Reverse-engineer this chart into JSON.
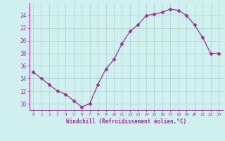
{
  "x": [
    0,
    1,
    2,
    3,
    4,
    5,
    6,
    7,
    8,
    9,
    10,
    11,
    12,
    13,
    14,
    15,
    16,
    17,
    18,
    19,
    20,
    21,
    22,
    23
  ],
  "y": [
    15,
    14,
    13,
    12,
    11.5,
    10.5,
    9.5,
    10,
    13,
    15.5,
    17,
    19.5,
    21.5,
    22.5,
    24,
    24.2,
    24.5,
    25,
    24.8,
    24,
    22.5,
    20.5,
    18,
    18
  ],
  "line_color": "#993399",
  "marker": "D",
  "marker_size": 2.5,
  "bg_color": "#cff0ee",
  "grid_color": "#b0d8d0",
  "xlabel": "Windchill (Refroidissement éolien,°C)",
  "ylabel_ticks": [
    10,
    12,
    14,
    16,
    18,
    20,
    22,
    24
  ],
  "xtick_labels": [
    "0",
    "1",
    "2",
    "3",
    "4",
    "5",
    "6",
    "7",
    "8",
    "9",
    "10",
    "11",
    "12",
    "13",
    "14",
    "15",
    "16",
    "17",
    "18",
    "19",
    "20",
    "21",
    "22",
    "23"
  ],
  "xlim": [
    -0.5,
    23.5
  ],
  "ylim": [
    9,
    26
  ],
  "tick_color": "#993399",
  "label_color": "#993399",
  "font_family": "monospace",
  "spine_color": "#993399"
}
